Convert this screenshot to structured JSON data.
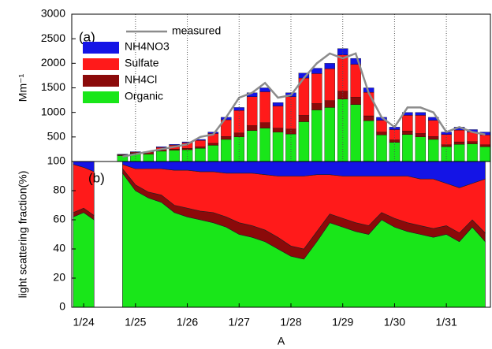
{
  "chart_data": [
    {
      "type": "bar",
      "stacked": true,
      "ylabel": "Mm⁻¹",
      "annotation": "(a)",
      "legend": "upper left",
      "grid": "x",
      "x": [
        24.75,
        25.0,
        25.25,
        25.5,
        25.75,
        26.0,
        26.25,
        26.5,
        26.75,
        27.0,
        27.25,
        27.5,
        27.75,
        28.0,
        28.25,
        28.5,
        28.75,
        29.0,
        29.25,
        29.5,
        29.75,
        30.0,
        30.25,
        30.5,
        30.75,
        31.0,
        31.25,
        31.5,
        31.75
      ],
      "xlim": [
        23.77,
        31.85
      ],
      "xticks": [
        25,
        26,
        27,
        28,
        29,
        30,
        31
      ],
      "ylim": [
        0,
        3000
      ],
      "yticks": [
        500,
        1000,
        1500,
        2000,
        2500,
        3000
      ],
      "series": [
        {
          "name": "measured",
          "type": "line",
          "color": "#8c8c8c",
          "values": [
            100,
            150,
            200,
            250,
            300,
            350,
            500,
            550,
            900,
            1300,
            1400,
            1600,
            1300,
            1350,
            1700,
            2000,
            2200,
            2100,
            2200,
            1400,
            900,
            700,
            1100,
            1100,
            1000,
            600,
            700,
            600,
            550
          ]
        },
        {
          "name": "NH4NO3",
          "color": "#1414e6",
          "values": [
            10,
            10,
            10,
            15,
            15,
            20,
            20,
            30,
            50,
            60,
            80,
            80,
            70,
            80,
            100,
            110,
            110,
            130,
            120,
            90,
            60,
            50,
            60,
            60,
            60,
            50,
            60,
            50,
            60
          ]
        },
        {
          "name": "Sulfate",
          "color": "#ff1a1a",
          "values": [
            10,
            15,
            25,
            55,
            80,
            110,
            130,
            200,
            340,
            460,
            590,
            630,
            450,
            660,
            760,
            610,
            650,
            740,
            670,
            480,
            240,
            210,
            320,
            370,
            330,
            210,
            240,
            195,
            200
          ]
        },
        {
          "name": "NH4Cl",
          "color": "#8b0a0a",
          "values": [
            10,
            15,
            15,
            20,
            25,
            30,
            30,
            40,
            60,
            80,
            100,
            110,
            80,
            100,
            130,
            130,
            140,
            160,
            150,
            100,
            60,
            50,
            70,
            70,
            60,
            40,
            50,
            45,
            40
          ]
        },
        {
          "name": "Organic",
          "color": "#19e619",
          "values": [
            120,
            160,
            150,
            210,
            230,
            240,
            270,
            330,
            450,
            500,
            630,
            680,
            600,
            560,
            810,
            1050,
            1100,
            1270,
            1160,
            830,
            540,
            390,
            550,
            500,
            450,
            300,
            350,
            360,
            300
          ]
        }
      ]
    },
    {
      "type": "area",
      "stacked": true,
      "ylabel": "light scattering fraction(%)",
      "xlabel": "A",
      "annotation": "(b)",
      "x": [
        23.8,
        24.0,
        24.2,
        24.45,
        24.75,
        25.0,
        25.25,
        25.5,
        25.75,
        26.0,
        26.25,
        26.5,
        26.75,
        27.0,
        27.25,
        27.5,
        27.75,
        28.0,
        28.25,
        28.5,
        28.75,
        29.0,
        29.25,
        29.5,
        29.75,
        30.0,
        30.25,
        30.5,
        30.75,
        31.0,
        31.25,
        31.5,
        31.75
      ],
      "xlim": [
        23.77,
        31.85
      ],
      "xticks": [
        {
          "value": 24,
          "label": "1/24"
        },
        {
          "value": 25,
          "label": "1/25"
        },
        {
          "value": 26,
          "label": "1/26"
        },
        {
          "value": 27,
          "label": "1/27"
        },
        {
          "value": 28,
          "label": "1/28"
        },
        {
          "value": 29,
          "label": "1/29"
        },
        {
          "value": 30,
          "label": "1/30"
        },
        {
          "value": 31,
          "label": "1/31"
        }
      ],
      "ylim": [
        0,
        100
      ],
      "yticks": [
        0,
        20,
        40,
        60,
        80,
        100
      ],
      "series": [
        {
          "color": "#1414e6",
          "values": [
            2,
            4,
            7,
            null,
            2,
            5,
            5,
            5,
            6,
            6,
            7,
            7,
            8,
            8,
            8,
            9,
            10,
            10,
            10,
            9,
            9,
            10,
            10,
            10,
            10,
            10,
            10,
            12,
            12,
            15,
            18,
            15,
            12
          ]
        },
        {
          "color": "#ff1a1a",
          "values": [
            33,
            28,
            30,
            null,
            3,
            11,
            16,
            18,
            24,
            26,
            27,
            28,
            30,
            34,
            36,
            38,
            42,
            48,
            50,
            39,
            27,
            29,
            32,
            34,
            25,
            29,
            32,
            32,
            34,
            29,
            31,
            25,
            37
          ]
        },
        {
          "color": "#8b0a0a",
          "values": [
            3,
            3,
            3,
            null,
            3,
            4,
            4,
            5,
            5,
            6,
            6,
            7,
            7,
            8,
            8,
            8,
            8,
            7,
            7,
            7,
            6,
            6,
            6,
            6,
            5,
            6,
            6,
            6,
            6,
            6,
            6,
            5,
            6
          ]
        },
        {
          "color": "#19e619",
          "values": [
            62,
            65,
            60,
            null,
            92,
            80,
            75,
            72,
            65,
            62,
            60,
            58,
            55,
            50,
            48,
            45,
            40,
            35,
            33,
            45,
            58,
            55,
            52,
            50,
            60,
            55,
            52,
            50,
            48,
            50,
            45,
            55,
            45
          ]
        }
      ]
    }
  ]
}
